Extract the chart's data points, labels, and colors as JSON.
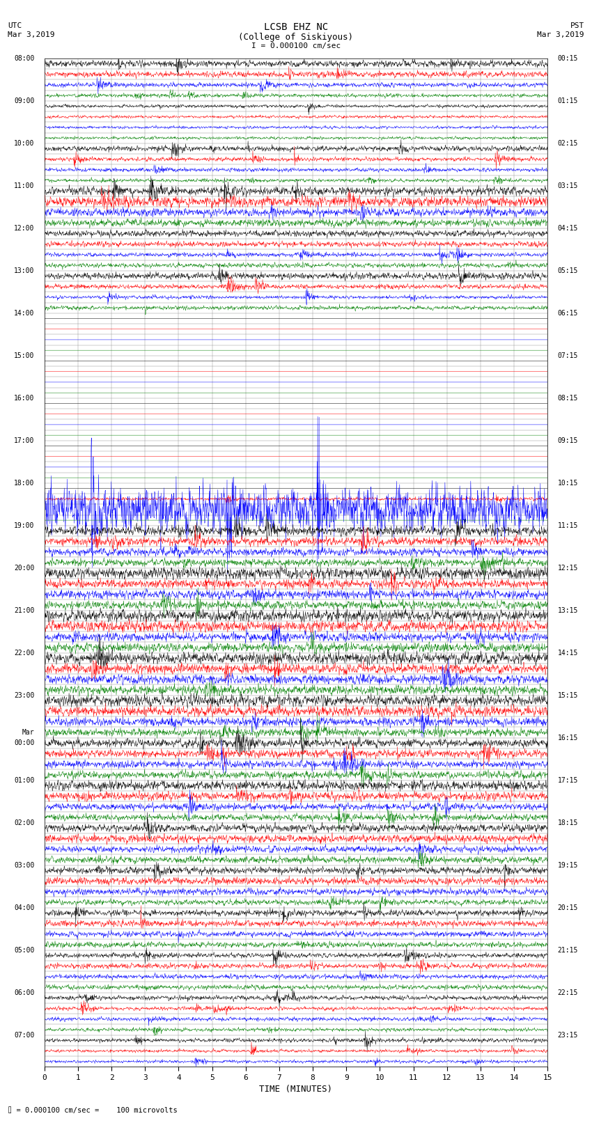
{
  "title_line1": "LCSB EHZ NC",
  "title_line2": "(College of Siskiyous)",
  "title_scale": "I = 0.000100 cm/sec",
  "left_header_line1": "UTC",
  "left_header_line2": "Mar 3,2019",
  "right_header_line1": "PST",
  "right_header_line2": "Mar 3,2019",
  "footer_text": "= 0.000100 cm/sec =    100 microvolts",
  "xlabel": "TIME (MINUTES)",
  "xmin": 0,
  "xmax": 15,
  "xticks": [
    0,
    1,
    2,
    3,
    4,
    5,
    6,
    7,
    8,
    9,
    10,
    11,
    12,
    13,
    14,
    15
  ],
  "background_color": "#ffffff",
  "trace_colors": [
    "black",
    "red",
    "blue",
    "green"
  ],
  "figsize": [
    8.5,
    16.13
  ],
  "dpi": 100,
  "left_times_utc": [
    "08:00",
    "",
    "",
    "",
    "09:00",
    "",
    "",
    "",
    "10:00",
    "",
    "",
    "",
    "11:00",
    "",
    "",
    "",
    "12:00",
    "",
    "",
    "",
    "13:00",
    "",
    "",
    "",
    "14:00",
    "",
    "",
    "",
    "15:00",
    "",
    "",
    "",
    "16:00",
    "",
    "",
    "",
    "17:00",
    "",
    "",
    "",
    "18:00",
    "",
    "",
    "",
    "19:00",
    "",
    "",
    "",
    "20:00",
    "",
    "",
    "",
    "21:00",
    "",
    "",
    "",
    "22:00",
    "",
    "",
    "",
    "23:00",
    "",
    "",
    "",
    "Mar\n00:00",
    "",
    "",
    "",
    "01:00",
    "",
    "",
    "",
    "02:00",
    "",
    "",
    "",
    "03:00",
    "",
    "",
    "",
    "04:00",
    "",
    "",
    "",
    "05:00",
    "",
    "",
    "",
    "06:00",
    "",
    "",
    "",
    "07:00",
    "",
    ""
  ],
  "right_times_pst": [
    "00:15",
    "",
    "",
    "",
    "01:15",
    "",
    "",
    "",
    "02:15",
    "",
    "",
    "",
    "03:15",
    "",
    "",
    "",
    "04:15",
    "",
    "",
    "",
    "05:15",
    "",
    "",
    "",
    "06:15",
    "",
    "",
    "",
    "07:15",
    "",
    "",
    "",
    "08:15",
    "",
    "",
    "",
    "09:15",
    "",
    "",
    "",
    "10:15",
    "",
    "",
    "",
    "11:15",
    "",
    "",
    "",
    "12:15",
    "",
    "",
    "",
    "13:15",
    "",
    "",
    "",
    "14:15",
    "",
    "",
    "",
    "15:15",
    "",
    "",
    "",
    "16:15",
    "",
    "",
    "",
    "17:15",
    "",
    "",
    "",
    "18:15",
    "",
    "",
    "",
    "19:15",
    "",
    "",
    "",
    "20:15",
    "",
    "",
    "",
    "21:15",
    "",
    "",
    "",
    "22:15",
    "",
    "",
    "",
    "23:15",
    "",
    ""
  ],
  "amplitude_profile": [
    0.38,
    0.32,
    0.28,
    0.22,
    0.18,
    0.15,
    0.15,
    0.15,
    0.32,
    0.28,
    0.22,
    0.2,
    0.55,
    0.6,
    0.45,
    0.38,
    0.32,
    0.28,
    0.28,
    0.25,
    0.38,
    0.3,
    0.22,
    0.22,
    0.02,
    0.02,
    0.02,
    0.02,
    0.02,
    0.02,
    0.02,
    0.02,
    0.02,
    0.02,
    0.02,
    0.02,
    0.02,
    0.02,
    0.02,
    0.02,
    0.02,
    0.18,
    2.8,
    0.02,
    0.6,
    0.52,
    0.45,
    0.45,
    0.6,
    0.52,
    0.5,
    0.5,
    0.6,
    0.58,
    0.52,
    0.5,
    0.65,
    0.58,
    0.55,
    0.5,
    0.58,
    0.55,
    0.5,
    0.48,
    0.55,
    0.5,
    0.48,
    0.45,
    0.5,
    0.48,
    0.42,
    0.42,
    0.45,
    0.42,
    0.38,
    0.38,
    0.42,
    0.38,
    0.35,
    0.32,
    0.38,
    0.35,
    0.3,
    0.3,
    0.32,
    0.3,
    0.25,
    0.25,
    0.28,
    0.25,
    0.22,
    0.2,
    0.25,
    0.2,
    0.18
  ],
  "num_traces": 95
}
